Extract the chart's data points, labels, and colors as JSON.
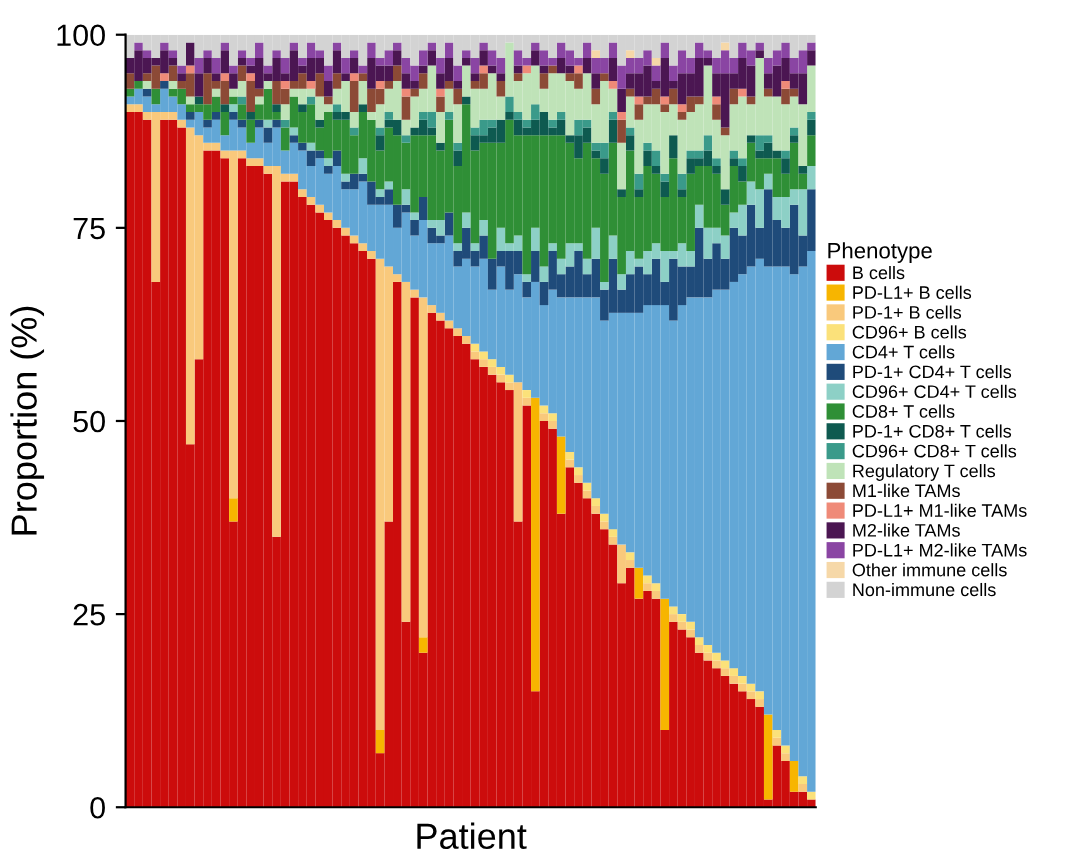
{
  "chart_data": {
    "type": "bar",
    "stacked": true,
    "xlabel": "Patient",
    "ylabel": "Proportion (%)",
    "legend_title": "Phenotype",
    "legend": "right",
    "grid": false,
    "ylim": [
      0,
      100
    ],
    "yticks": [
      0,
      25,
      50,
      75,
      100
    ],
    "categories": [
      null,
      null,
      null,
      null,
      null,
      null,
      null,
      null,
      null,
      null,
      null,
      null,
      null,
      null,
      null,
      null,
      null,
      null,
      null,
      null,
      null,
      null,
      null,
      null,
      null,
      null,
      null,
      null,
      null,
      null,
      null,
      null,
      null,
      null,
      null,
      null,
      null,
      null,
      null,
      null,
      null,
      null,
      null,
      null,
      null,
      null,
      null,
      null,
      null,
      null,
      null,
      null,
      null,
      null,
      null,
      null,
      null,
      null,
      null,
      null,
      null,
      null,
      null,
      null,
      null,
      null,
      null,
      null,
      null,
      null,
      null,
      null,
      null,
      null,
      null,
      null,
      null,
      null,
      null,
      null
    ],
    "series": [
      {
        "name": "B cells",
        "color": "#cc0c0c",
        "values": [
          90,
          90,
          89,
          68,
          89,
          89,
          88,
          47,
          58,
          85,
          85,
          84,
          37,
          84,
          83,
          83,
          82,
          35,
          81,
          81,
          79,
          78,
          77,
          76,
          75,
          74,
          73,
          72,
          71,
          7,
          37,
          68,
          24,
          66,
          20,
          64,
          63,
          62,
          61,
          60,
          58,
          57,
          56,
          55,
          54,
          37,
          52,
          15,
          50,
          49,
          38,
          44,
          42,
          40,
          38,
          36,
          34,
          29,
          31,
          27,
          28,
          27,
          10,
          24,
          23,
          22,
          20,
          19,
          18,
          17,
          16,
          15,
          14,
          13,
          1,
          8,
          6,
          2,
          2,
          1
        ]
      },
      {
        "name": "PD-L1+ B cells",
        "color": "#f7b500",
        "values": [
          0,
          0,
          0,
          0,
          0,
          0,
          0,
          0,
          0,
          0,
          0,
          0,
          3,
          0,
          0,
          0,
          0,
          0,
          0,
          0,
          0,
          0,
          0,
          0,
          0,
          0,
          0,
          0,
          0,
          3,
          0,
          0,
          0,
          0,
          2,
          0,
          0,
          0,
          0,
          0,
          0,
          0,
          0,
          0,
          0,
          0,
          0,
          38,
          0,
          0,
          10,
          0,
          0,
          0,
          0,
          0,
          0,
          0,
          0,
          4,
          0,
          0,
          17,
          0,
          0,
          0,
          0,
          0,
          0,
          0,
          0,
          0,
          0,
          0,
          11,
          0,
          0,
          4,
          0,
          0
        ]
      },
      {
        "name": "PD-1+ B cells",
        "color": "#f9c97c",
        "values": [
          1,
          1,
          1,
          22,
          1,
          1,
          1,
          41,
          29,
          1,
          1,
          1,
          45,
          1,
          1,
          1,
          1,
          48,
          1,
          1,
          1,
          1,
          1,
          1,
          1,
          1,
          1,
          1,
          1,
          61,
          33,
          1,
          44,
          1,
          44,
          1,
          1,
          1,
          1,
          1,
          1,
          1,
          1,
          1,
          1,
          18,
          1,
          0,
          1,
          1,
          0,
          1,
          1,
          1,
          1,
          1,
          1,
          5,
          1,
          0,
          1,
          1,
          0,
          1,
          1,
          1,
          1,
          1,
          1,
          1,
          1,
          1,
          1,
          1,
          0,
          1,
          1,
          0,
          1,
          0
        ]
      },
      {
        "name": "CD96+ B cells",
        "color": "#fbe17a",
        "values": [
          0,
          0,
          0,
          0,
          0,
          0,
          0,
          0,
          0,
          0,
          0,
          0,
          0,
          0,
          0,
          0,
          0,
          0,
          0,
          0,
          0,
          0,
          0,
          0,
          0,
          0,
          0,
          0,
          0,
          0,
          0,
          0,
          0,
          0,
          0,
          0,
          0,
          0,
          0,
          0,
          1,
          1,
          1,
          1,
          1,
          0,
          1,
          0,
          1,
          1,
          0,
          1,
          1,
          1,
          1,
          1,
          1,
          0,
          1,
          0,
          1,
          1,
          0,
          1,
          1,
          1,
          1,
          1,
          1,
          1,
          1,
          1,
          1,
          1,
          0,
          1,
          1,
          0,
          1,
          1
        ]
      },
      {
        "name": "CD4+ T cells",
        "color": "#62a7d6",
        "values": [
          1,
          2,
          2,
          1,
          3,
          2,
          2,
          1,
          3,
          2,
          3,
          2,
          4,
          3,
          2,
          4,
          3,
          5,
          3,
          4,
          5,
          4,
          6,
          5,
          7,
          5,
          6,
          8,
          6,
          7,
          8,
          6,
          9,
          7,
          10,
          8,
          9,
          11,
          8,
          10,
          10,
          12,
          9,
          13,
          11,
          14,
          12,
          15,
          13,
          16,
          18,
          20,
          22,
          24,
          26,
          25,
          28,
          30,
          31,
          33,
          35,
          36,
          38,
          37,
          40,
          42,
          44,
          45,
          47,
          48,
          50,
          52,
          54,
          56,
          58,
          60,
          62,
          63,
          66,
          70
        ]
      },
      {
        "name": "PD-1+ CD4+ T cells",
        "color": "#1f4b7a",
        "values": [
          0,
          0,
          1,
          0,
          1,
          0,
          0,
          1,
          0,
          1,
          1,
          0,
          1,
          1,
          0,
          1,
          2,
          1,
          0,
          1,
          1,
          2,
          1,
          1,
          2,
          1,
          2,
          1,
          3,
          1,
          2,
          3,
          1,
          2,
          3,
          2,
          1,
          3,
          2,
          4,
          2,
          3,
          4,
          2,
          5,
          3,
          2,
          4,
          3,
          5,
          3,
          4,
          6,
          3,
          5,
          4,
          7,
          3,
          5,
          6,
          4,
          6,
          3,
          8,
          5,
          4,
          9,
          5,
          6,
          4,
          7,
          5,
          8,
          4,
          10,
          6,
          5,
          9,
          4,
          8
        ]
      },
      {
        "name": "CD96+ CD4+ T cells",
        "color": "#8dd0c6",
        "values": [
          0,
          0,
          0,
          0,
          0,
          0,
          0,
          0,
          0,
          0,
          0,
          0,
          1,
          0,
          0,
          0,
          1,
          0,
          0,
          1,
          0,
          1,
          0,
          1,
          0,
          1,
          0,
          2,
          0,
          1,
          1,
          0,
          2,
          1,
          0,
          1,
          2,
          0,
          1,
          2,
          1,
          2,
          0,
          3,
          1,
          2,
          1,
          3,
          2,
          1,
          2,
          3,
          1,
          2,
          4,
          1,
          3,
          2,
          3,
          1,
          3,
          2,
          4,
          1,
          3,
          2,
          3,
          4,
          2,
          3,
          2,
          4,
          3,
          5,
          2,
          3,
          4,
          2,
          6,
          3
        ]
      },
      {
        "name": "CD8+ T cells",
        "color": "#2f8f36",
        "values": [
          1,
          1,
          0,
          2,
          0,
          1,
          2,
          1,
          1,
          2,
          2,
          3,
          1,
          2,
          3,
          2,
          4,
          1,
          3,
          4,
          4,
          5,
          3,
          6,
          4,
          7,
          5,
          6,
          8,
          5,
          7,
          9,
          6,
          10,
          8,
          11,
          9,
          12,
          10,
          14,
          12,
          10,
          15,
          11,
          16,
          13,
          18,
          12,
          17,
          14,
          16,
          13,
          11,
          15,
          9,
          14,
          12,
          10,
          13,
          8,
          11,
          9,
          7,
          12,
          6,
          10,
          5,
          8,
          7,
          4,
          6,
          3,
          5,
          4,
          2,
          5,
          3,
          6,
          2,
          4
        ]
      },
      {
        "name": "PD-1+ CD8+ T cells",
        "color": "#0e5a50",
        "values": [
          0,
          0,
          0,
          0,
          0,
          0,
          0,
          0,
          1,
          0,
          0,
          1,
          0,
          0,
          1,
          0,
          0,
          1,
          0,
          0,
          1,
          0,
          1,
          0,
          1,
          1,
          0,
          1,
          0,
          2,
          1,
          2,
          0,
          1,
          2,
          1,
          1,
          0,
          2,
          1,
          2,
          1,
          2,
          3,
          1,
          2,
          1,
          2,
          3,
          1,
          2,
          1,
          3,
          2,
          1,
          2,
          3,
          1,
          2,
          1,
          2,
          1,
          2,
          3,
          1,
          2,
          1,
          2,
          1,
          2,
          1,
          2,
          1,
          1,
          2,
          1,
          2,
          1,
          1,
          2
        ]
      },
      {
        "name": "CD96+ CD8+ T cells",
        "color": "#3a9a8a",
        "values": [
          0,
          0,
          0,
          0,
          0,
          0,
          0,
          0,
          0,
          0,
          0,
          0,
          0,
          1,
          0,
          0,
          0,
          0,
          1,
          0,
          0,
          1,
          0,
          0,
          1,
          0,
          1,
          0,
          0,
          1,
          1,
          0,
          1,
          0,
          1,
          2,
          0,
          1,
          1,
          0,
          1,
          2,
          1,
          0,
          2,
          1,
          1,
          2,
          0,
          1,
          1,
          0,
          2,
          1,
          1,
          2,
          1,
          0,
          1,
          2,
          1,
          2,
          1,
          0,
          2,
          1,
          1,
          2,
          1,
          0,
          1,
          1,
          0,
          2,
          1,
          0,
          1,
          1,
          0,
          1
        ]
      },
      {
        "name": "Regulatory T cells",
        "color": "#bfe3b8",
        "values": [
          0,
          0,
          1,
          0,
          0,
          1,
          0,
          1,
          0,
          0,
          1,
          0,
          1,
          2,
          0,
          1,
          1,
          0,
          2,
          1,
          2,
          1,
          3,
          1,
          2,
          4,
          2,
          3,
          1,
          3,
          3,
          5,
          2,
          4,
          3,
          6,
          4,
          3,
          5,
          4,
          5,
          4,
          6,
          3,
          7,
          4,
          6,
          5,
          3,
          6,
          5,
          7,
          4,
          6,
          5,
          8,
          3,
          6,
          4,
          7,
          5,
          6,
          8,
          4,
          7,
          5,
          6,
          9,
          5,
          7,
          6,
          8,
          4,
          10,
          5,
          7,
          6,
          4,
          8,
          6
        ]
      },
      {
        "name": "M1-like TAMs",
        "color": "#8c4a36",
        "values": [
          2,
          0,
          1,
          3,
          0,
          2,
          1,
          3,
          0,
          4,
          1,
          3,
          0,
          2,
          4,
          1,
          0,
          3,
          2,
          1,
          2,
          0,
          3,
          1,
          2,
          0,
          4,
          1,
          3,
          2,
          1,
          2,
          3,
          1,
          2,
          0,
          2,
          1,
          2,
          0,
          1,
          2,
          0,
          2,
          0,
          1,
          0,
          0,
          2,
          1,
          0,
          1,
          2,
          0,
          2,
          1,
          0,
          3,
          1,
          2,
          1,
          2,
          1,
          2,
          1,
          2,
          1,
          0,
          2,
          1,
          2,
          0,
          1,
          0,
          1,
          0,
          2,
          1,
          0,
          0
        ]
      },
      {
        "name": "PD-L1+ M1-like TAMs",
        "color": "#ef8a78",
        "values": [
          0,
          0,
          0,
          0,
          1,
          0,
          0,
          1,
          0,
          0,
          0,
          1,
          0,
          0,
          1,
          0,
          0,
          0,
          1,
          0,
          0,
          1,
          0,
          0,
          0,
          0,
          1,
          0,
          0,
          1,
          0,
          0,
          1,
          0,
          0,
          0,
          1,
          0,
          0,
          0,
          0,
          1,
          0,
          0,
          0,
          0,
          1,
          0,
          0,
          0,
          0,
          0,
          1,
          0,
          0,
          0,
          1,
          1,
          0,
          1,
          0,
          0,
          1,
          0,
          1,
          0,
          0,
          0,
          1,
          0,
          0,
          1,
          0,
          0,
          0,
          0,
          1,
          0,
          0,
          0
        ]
      },
      {
        "name": "M2-like TAMs",
        "color": "#4b1652",
        "values": [
          2,
          4,
          2,
          1,
          3,
          1,
          1,
          3,
          3,
          2,
          1,
          3,
          2,
          1,
          1,
          4,
          1,
          3,
          1,
          4,
          1,
          3,
          2,
          2,
          3,
          1,
          2,
          0,
          4,
          2,
          2,
          2,
          2,
          1,
          1,
          2,
          2,
          3,
          1,
          1,
          1,
          2,
          1,
          1,
          0,
          1,
          0,
          2,
          1,
          0,
          2,
          1,
          0,
          2,
          2,
          0,
          3,
          3,
          2,
          3,
          4,
          1,
          5,
          1,
          4,
          3,
          5,
          1,
          3,
          7,
          2,
          4,
          4,
          1,
          2,
          4,
          3,
          2,
          4,
          2
        ]
      },
      {
        "name": "PD-L1+ M2-like TAMs",
        "color": "#8a45a3",
        "values": [
          0,
          1,
          1,
          0,
          1,
          1,
          1,
          0,
          2,
          1,
          2,
          1,
          1,
          1,
          1,
          2,
          1,
          1,
          2,
          1,
          1,
          2,
          1,
          2,
          1,
          2,
          1,
          1,
          2,
          1,
          2,
          1,
          2,
          2,
          2,
          1,
          2,
          2,
          2,
          1,
          2,
          1,
          2,
          2,
          0,
          2,
          1,
          1,
          2,
          1,
          2,
          2,
          1,
          2,
          2,
          2,
          2,
          3,
          2,
          2,
          2,
          2,
          2,
          2,
          3,
          2,
          2,
          1,
          2,
          3,
          2,
          2,
          2,
          1,
          2,
          2,
          2,
          2,
          3,
          1
        ]
      },
      {
        "name": "Other immune cells",
        "color": "#f6d8a8",
        "values": [
          0,
          0,
          0,
          0,
          0,
          0,
          0,
          0,
          0,
          0,
          0,
          0,
          0,
          0,
          0,
          0,
          0,
          0,
          0,
          0,
          0,
          0,
          0,
          0,
          0,
          0,
          0,
          0,
          0,
          0,
          0,
          0,
          0,
          0,
          0,
          0,
          0,
          0,
          0,
          0,
          0,
          0,
          0,
          0,
          0,
          0,
          0,
          0,
          0,
          0,
          0,
          0,
          0,
          0,
          1,
          0,
          0,
          0,
          1,
          0,
          0,
          1,
          0,
          0,
          0,
          0,
          0,
          0,
          0,
          1,
          0,
          0,
          0,
          0,
          0,
          0,
          0,
          0,
          0,
          0
        ]
      },
      {
        "name": "Non-immune cells",
        "color": "#d3d3d3",
        "values": [
          3,
          1,
          2,
          3,
          1,
          2,
          4,
          1,
          3,
          2,
          3,
          1,
          4,
          2,
          3,
          1,
          4,
          2,
          3,
          1,
          3,
          1,
          2,
          4,
          1,
          3,
          2,
          4,
          1,
          3,
          2,
          1,
          3,
          4,
          2,
          1,
          3,
          1,
          4,
          2,
          3,
          1,
          2,
          3,
          1,
          2,
          3,
          1,
          2,
          3,
          1,
          2,
          3,
          1,
          2,
          3,
          1,
          4,
          2,
          3,
          2,
          3,
          1,
          4,
          2,
          3,
          1,
          2,
          3,
          1,
          3,
          1,
          2,
          1,
          3,
          2,
          1,
          3,
          2,
          1
        ]
      }
    ]
  }
}
